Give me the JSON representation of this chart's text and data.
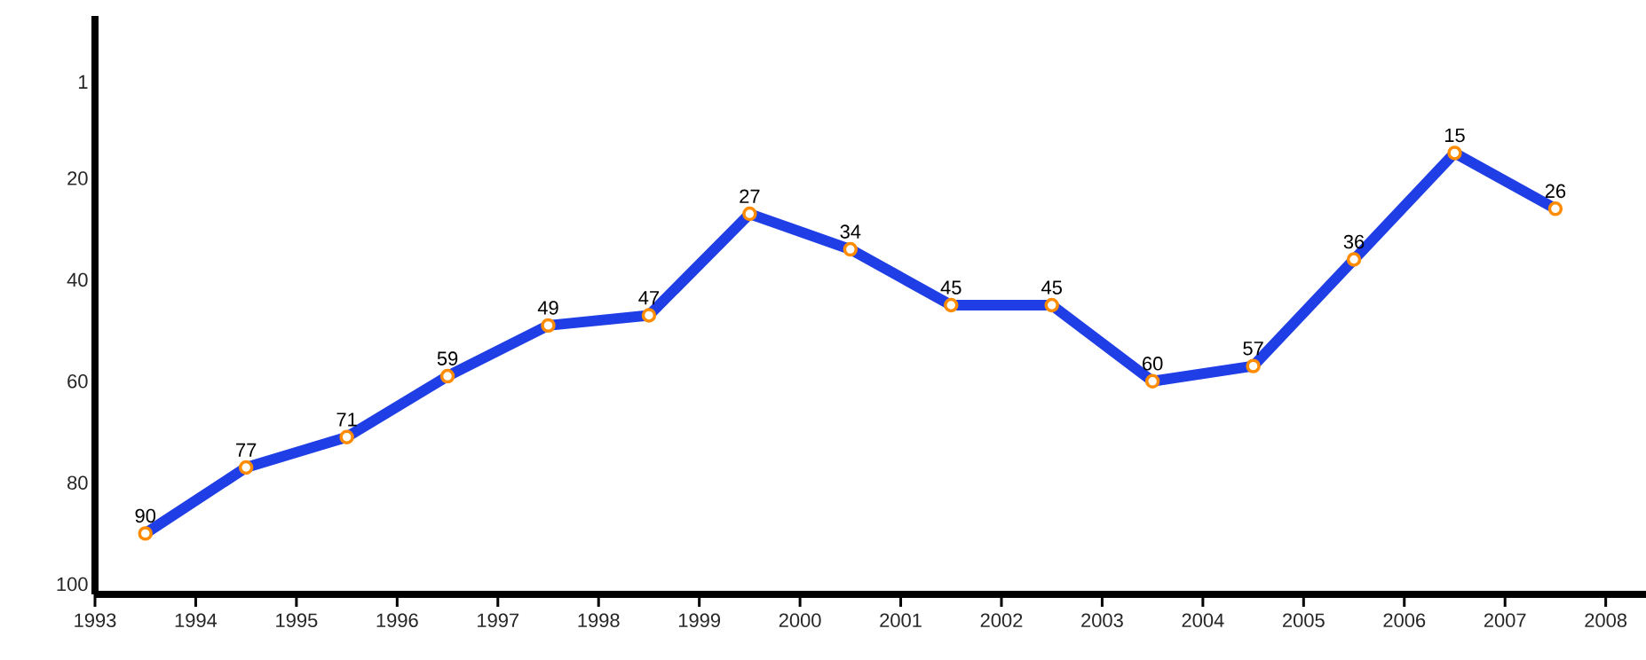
{
  "chart_data": {
    "type": "line",
    "x": [
      1993.5,
      1994.5,
      1995.5,
      1996.5,
      1997.5,
      1998.5,
      1999.5,
      2000.5,
      2001.5,
      2002.5,
      2003.5,
      2004.5,
      2005.5,
      2006.5,
      2007.5
    ],
    "series": [
      {
        "color": "#1f3ee6",
        "values": [
          90,
          77,
          71,
          59,
          49,
          47,
          27,
          34,
          45,
          45,
          60,
          57,
          36,
          15,
          26
        ]
      }
    ],
    "data_labels": true,
    "marker": "circle",
    "xlim": [
      1993,
      2008.4
    ],
    "xticks": [
      1993,
      1994,
      1995,
      1996,
      1997,
      1998,
      1999,
      2000,
      2001,
      2002,
      2003,
      2004,
      2005,
      2006,
      2007,
      2008
    ],
    "ylim": [
      102,
      -12
    ],
    "yticks": [
      1,
      20,
      40,
      60,
      80,
      100
    ],
    "grid": false
  }
}
